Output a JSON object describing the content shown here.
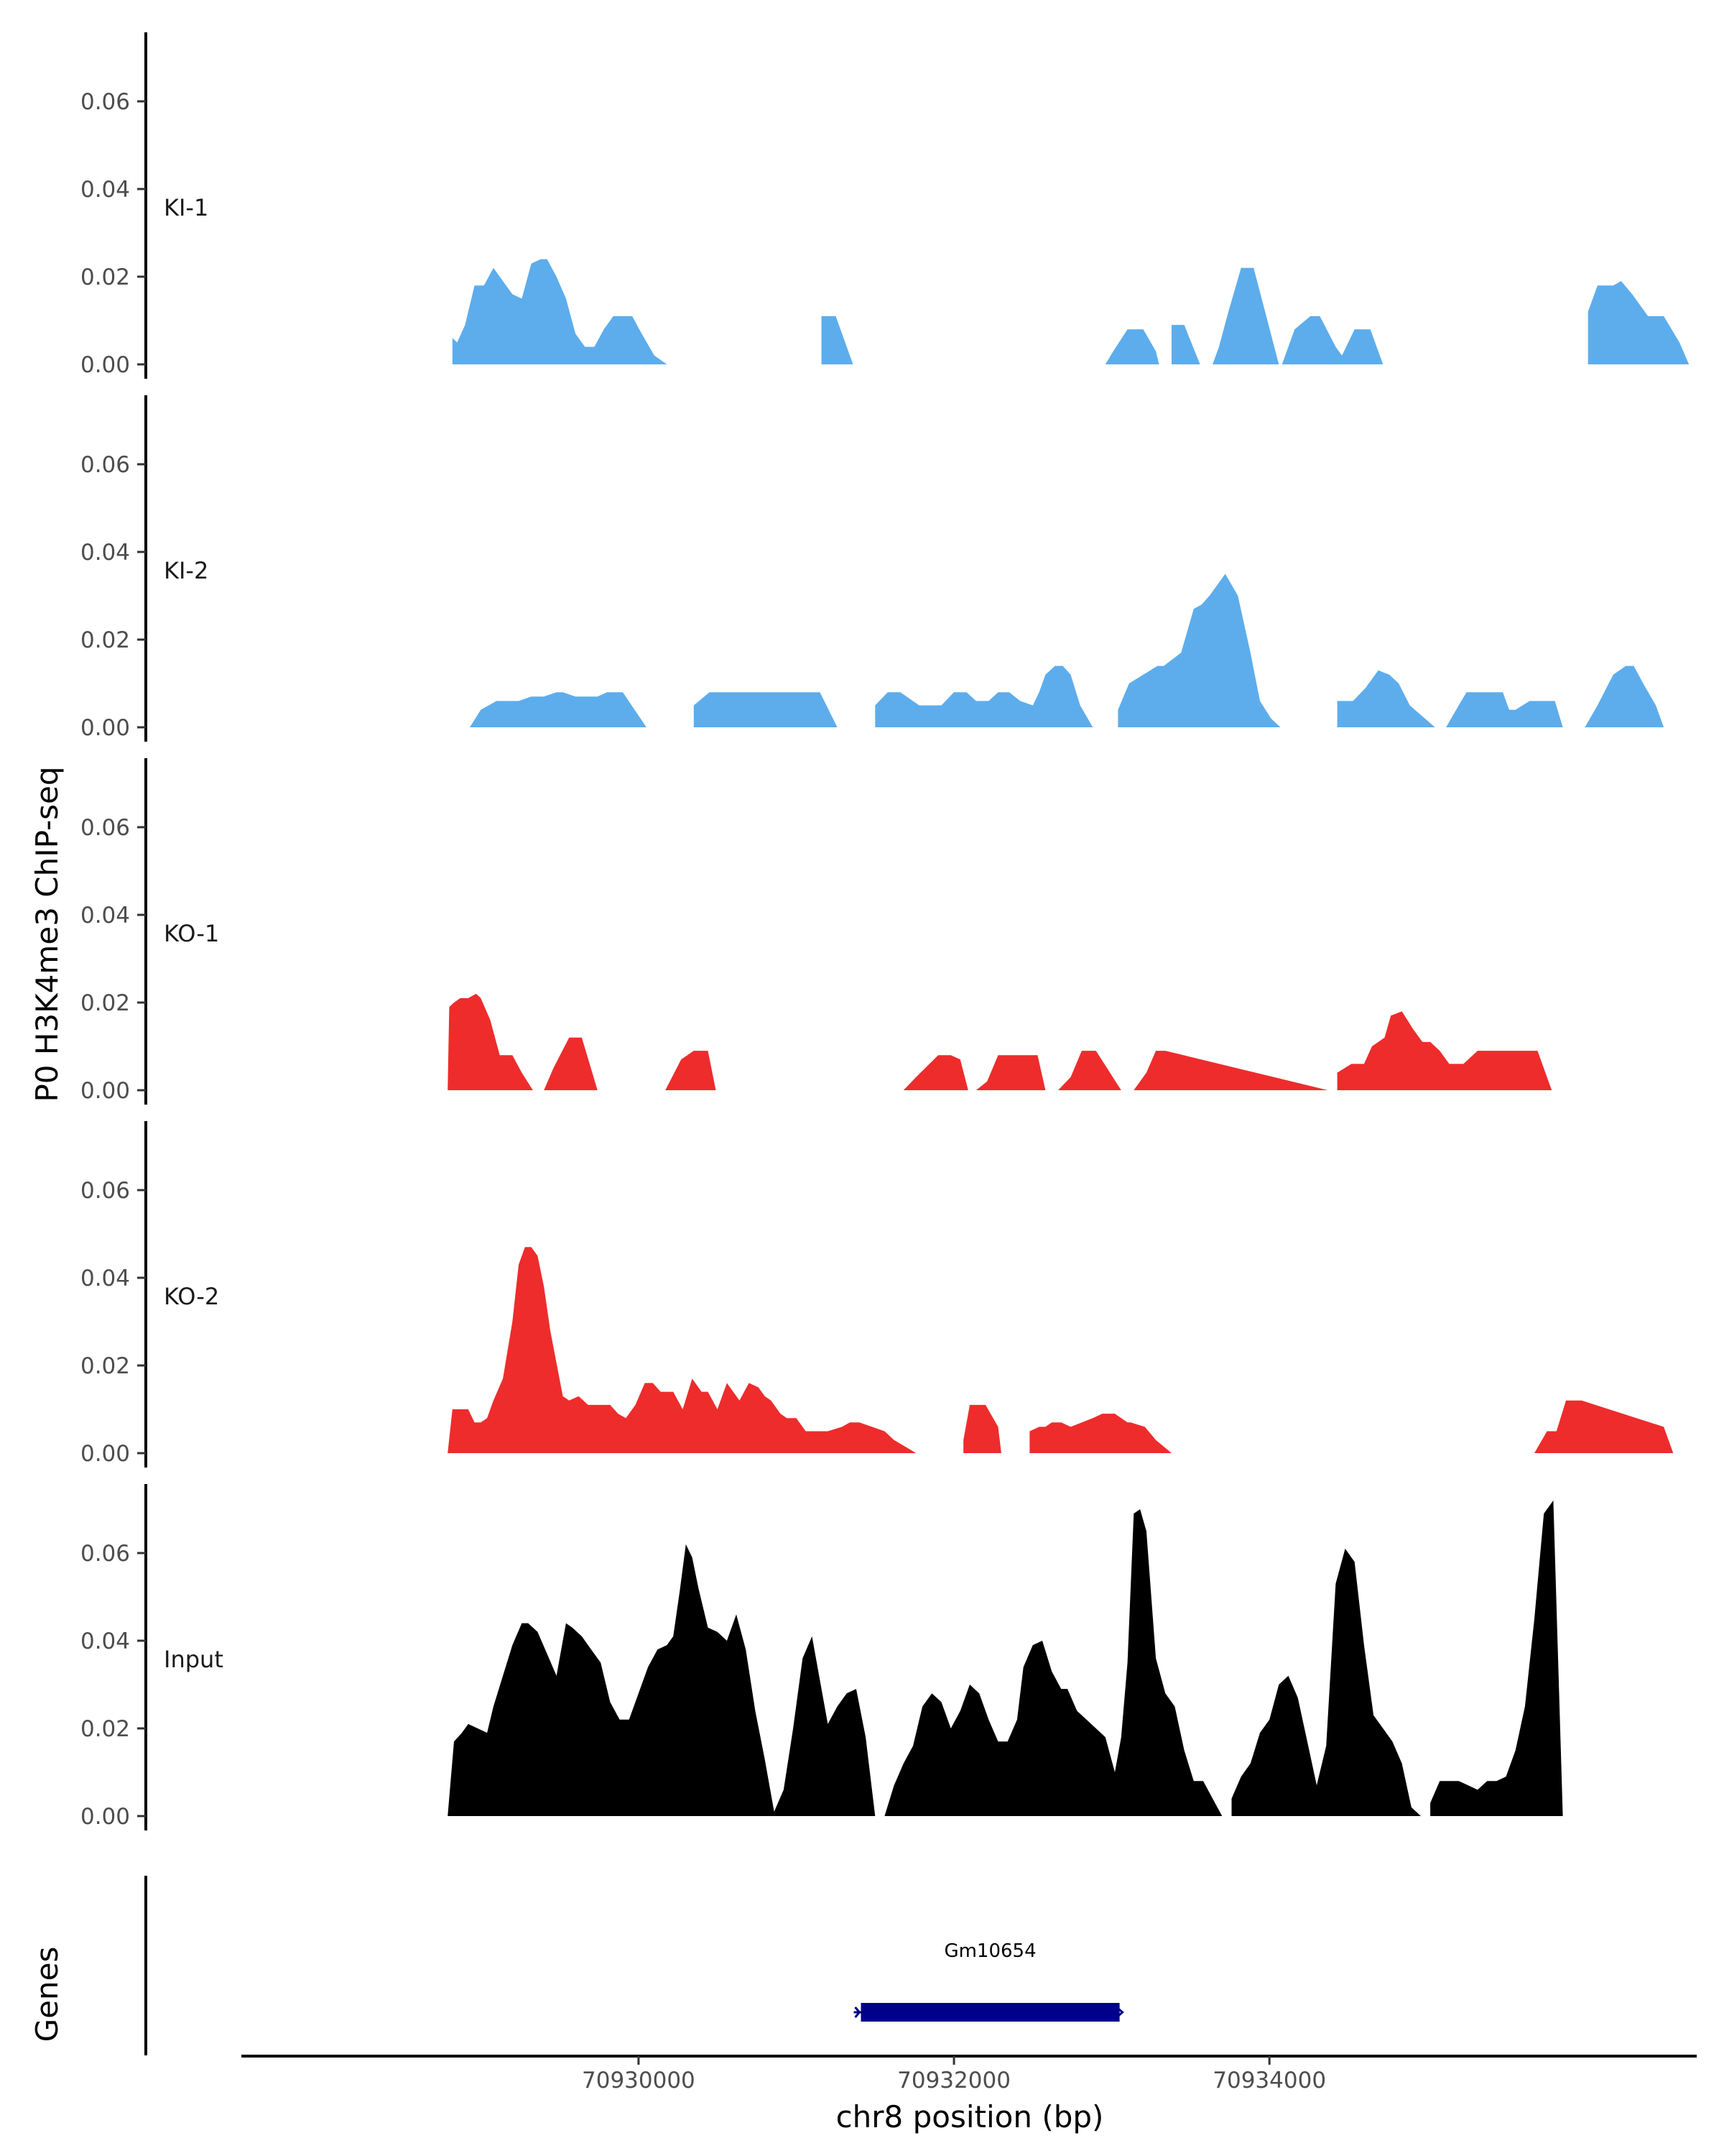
{
  "chart_data": {
    "type": "area",
    "ylabel": "P0 H3K4me3 ChIP-seq",
    "xlabel": "chr8 position (bp)",
    "xlim": [
      70927500,
      70936700
    ],
    "ylim": [
      0,
      0.075
    ],
    "y_ticks": [
      0,
      0.02,
      0.04,
      0.06
    ],
    "y_tick_labels": [
      "0.00",
      "0.02",
      "0.04",
      "0.06"
    ],
    "x_ticks": [
      70930000,
      70932000,
      70934000
    ],
    "x_tick_labels": [
      "70930000",
      "70932000",
      "70934000"
    ],
    "tracks": [
      {
        "name": "KI-1",
        "color": "#5DADEC",
        "x": [
          70928820,
          70928850,
          70928900,
          70928960,
          70929020,
          70929080,
          70929140,
          70929200,
          70929260,
          70929320,
          70929380,
          70929420,
          70929480,
          70929540,
          70929600,
          70929660,
          70929720,
          70929780,
          70929840,
          70929900,
          70929960,
          70930020,
          70930100,
          70930180,
          70930230,
          70931060,
          70931160,
          70931250,
          70931360,
          70932960,
          70933010,
          70933100,
          70933200,
          70933280,
          70933300,
          70933380,
          70933460,
          70933560,
          70933640,
          70933680,
          70933740,
          70933820,
          70933900,
          70933980,
          70934060,
          70934080,
          70934160,
          70934260,
          70934320,
          70934420,
          70934460,
          70934540,
          70934640,
          70934720,
          70934820,
          70935960,
          70936020,
          70936080,
          70936180,
          70936230,
          70936300,
          70936400,
          70936500,
          70936600,
          70936660
        ],
        "values": [
          0.006,
          0.005,
          0.009,
          0.018,
          0.018,
          0.022,
          0.019,
          0.016,
          0.015,
          0.023,
          0.024,
          0.024,
          0.02,
          0.015,
          0.007,
          0.004,
          0.004,
          0.008,
          0.011,
          0.011,
          0.011,
          0.007,
          0.002,
          0.0,
          0.0,
          0.0,
          0.011,
          0.011,
          0.0,
          0.0,
          0.003,
          0.008,
          0.008,
          0.003,
          0.0,
          0.009,
          0.009,
          0.0,
          0.0,
          0.004,
          0.012,
          0.022,
          0.022,
          0.011,
          0.0,
          0.0,
          0.008,
          0.011,
          0.011,
          0.004,
          0.002,
          0.008,
          0.008,
          0.0,
          0.0,
          0.0,
          0.012,
          0.018,
          0.018,
          0.019,
          0.016,
          0.011,
          0.011,
          0.005,
          0.0
        ]
      },
      {
        "name": "KI-2",
        "color": "#5DADEC",
        "x": [
          70928930,
          70929000,
          70929100,
          70929200,
          70929240,
          70929320,
          70929400,
          70929480,
          70929520,
          70929600,
          70929700,
          70929740,
          70929800,
          70929900,
          70930050,
          70930200,
          70930280,
          70930350,
          70930450,
          70931150,
          70931260,
          70931360,
          70931420,
          70931500,
          70931580,
          70931660,
          70931780,
          70931860,
          70931920,
          70932000,
          70932080,
          70932140,
          70932220,
          70932280,
          70932350,
          70932420,
          70932500,
          70932540,
          70932580,
          70932640,
          70932690,
          70932740,
          70932800,
          70932880,
          70932950,
          70932990,
          70933040,
          70933110,
          70933290,
          70933330,
          70933440,
          70933520,
          70933570,
          70933620,
          70933720,
          70933800,
          70933880,
          70933940,
          70934010,
          70934070,
          70934160,
          70934270,
          70934430,
          70934530,
          70934610,
          70934690,
          70934760,
          70934820,
          70934890,
          70935050,
          70935120,
          70935200,
          70935250,
          70935320,
          70935400,
          70935480,
          70935520,
          70935560,
          70935650,
          70935720,
          70935760,
          70935810,
          70935860,
          70936000,
          70936080,
          70936180,
          70936260,
          70936310,
          70936370,
          70936450,
          70936500,
          70936600,
          70936660
        ],
        "values": [
          0.0,
          0.004,
          0.006,
          0.006,
          0.006,
          0.007,
          0.007,
          0.008,
          0.008,
          0.007,
          0.007,
          0.007,
          0.008,
          0.008,
          0.0,
          0.0,
          0.0,
          0.005,
          0.008,
          0.008,
          0.0,
          0.0,
          0.0,
          0.005,
          0.008,
          0.008,
          0.005,
          0.005,
          0.005,
          0.008,
          0.008,
          0.006,
          0.006,
          0.008,
          0.008,
          0.006,
          0.005,
          0.008,
          0.012,
          0.014,
          0.014,
          0.012,
          0.005,
          0.0,
          0.0,
          0.0,
          0.004,
          0.01,
          0.014,
          0.014,
          0.017,
          0.027,
          0.028,
          0.03,
          0.035,
          0.03,
          0.017,
          0.006,
          0.002,
          0.0,
          0.0,
          0.0,
          0.006,
          0.006,
          0.009,
          0.013,
          0.012,
          0.01,
          0.005,
          0.0,
          0.0,
          0.005,
          0.008,
          0.008,
          0.008,
          0.008,
          0.004,
          0.004,
          0.006,
          0.006,
          0.006,
          0.006,
          0.0,
          0.0,
          0.005,
          0.012,
          0.014,
          0.014,
          0.01,
          0.005,
          0.0,
          0.0,
          0.0
        ]
      },
      {
        "name": "KO-1",
        "color": "#EE2C2C",
        "x": [
          70928790,
          70928800,
          70928830,
          70928870,
          70928920,
          70928970,
          70929000,
          70929060,
          70929120,
          70929170,
          70929200,
          70929260,
          70929330,
          70929400,
          70929460,
          70929560,
          70929600,
          70929640,
          70929740,
          70930170,
          70930270,
          70930350,
          70930440,
          70930490,
          70931680,
          70931760,
          70931900,
          70931980,
          70932040,
          70932090,
          70932140,
          70932210,
          70932280,
          70932530,
          70932580,
          70932660,
          70932740,
          70932810,
          70932850,
          70932900,
          70933060,
          70933140,
          70933220,
          70933280,
          70933340,
          70934370,
          70934430,
          70934520,
          70934600,
          70934650,
          70934730,
          70934770,
          70934840,
          70934910,
          70934970,
          70935020,
          70935080,
          70935140,
          70935180,
          70935230,
          70935320,
          70935420,
          70935610,
          70935700,
          70935790
        ],
        "values": [
          0.0,
          0.019,
          0.02,
          0.021,
          0.021,
          0.022,
          0.021,
          0.016,
          0.008,
          0.008,
          0.008,
          0.004,
          0.0,
          0.0,
          0.005,
          0.012,
          0.012,
          0.012,
          0.0,
          0.0,
          0.007,
          0.009,
          0.009,
          0.0,
          0.0,
          0.003,
          0.008,
          0.008,
          0.007,
          0.0,
          0.0,
          0.002,
          0.008,
          0.008,
          0.0,
          0.0,
          0.003,
          0.009,
          0.009,
          0.009,
          0.0,
          0.0,
          0.004,
          0.009,
          0.009,
          0.0,
          0.004,
          0.006,
          0.006,
          0.01,
          0.012,
          0.017,
          0.018,
          0.014,
          0.011,
          0.011,
          0.009,
          0.006,
          0.006,
          0.006,
          0.009,
          0.009,
          0.009,
          0.009,
          0.0
        ]
      },
      {
        "name": "KO-2",
        "color": "#EE2C2C",
        "x": [
          70928790,
          70928820,
          70928920,
          70928960,
          70929000,
          70929040,
          70929080,
          70929140,
          70929200,
          70929240,
          70929280,
          70929320,
          70929360,
          70929400,
          70929440,
          70929520,
          70929560,
          70929620,
          70929680,
          70929740,
          70929820,
          70929870,
          70929920,
          70929980,
          70930040,
          70930090,
          70930140,
          70930180,
          70930220,
          70930280,
          70930340,
          70930400,
          70930440,
          70930500,
          70930560,
          70930600,
          70930640,
          70930700,
          70930760,
          70930800,
          70930840,
          70930900,
          70930940,
          70931000,
          70931060,
          70931120,
          70931200,
          70931290,
          70931340,
          70931400,
          70931560,
          70931620,
          70931760,
          70931800,
          70931880,
          70932060,
          70932100,
          70932200,
          70932280,
          70932300,
          70932380,
          70932440,
          70932480,
          70932540,
          70932580,
          70932620,
          70932680,
          70932740,
          70932880,
          70932940,
          70933020,
          70933100,
          70933120,
          70933210,
          70933280,
          70933380,
          70933460,
          70933540,
          70935680,
          70935760,
          70935820,
          70935880,
          70935980,
          70936500,
          70936560,
          70936600,
          70936660
        ],
        "values": [
          0.0,
          0.01,
          0.01,
          0.007,
          0.007,
          0.008,
          0.012,
          0.017,
          0.03,
          0.043,
          0.047,
          0.047,
          0.045,
          0.038,
          0.028,
          0.013,
          0.012,
          0.013,
          0.011,
          0.011,
          0.011,
          0.009,
          0.008,
          0.011,
          0.016,
          0.016,
          0.014,
          0.014,
          0.014,
          0.01,
          0.017,
          0.014,
          0.014,
          0.01,
          0.016,
          0.014,
          0.012,
          0.016,
          0.015,
          0.013,
          0.012,
          0.009,
          0.008,
          0.008,
          0.005,
          0.005,
          0.005,
          0.006,
          0.007,
          0.007,
          0.005,
          0.003,
          0.0,
          0.0,
          0.0,
          0.003,
          0.011,
          0.011,
          0.006,
          0.0,
          0.0,
          0.0,
          0.005,
          0.006,
          0.006,
          0.007,
          0.007,
          0.006,
          0.008,
          0.009,
          0.009,
          0.007,
          0.007,
          0.006,
          0.003,
          0.0,
          0.0,
          0.0,
          0.0,
          0.005,
          0.005,
          0.012,
          0.012,
          0.006,
          0.0,
          0.0,
          0.0
        ]
      },
      {
        "name": "Input",
        "color": "#000000",
        "x": [
          70928790,
          70928830,
          70928880,
          70928920,
          70928980,
          70929040,
          70929080,
          70929140,
          70929200,
          70929260,
          70929300,
          70929360,
          70929420,
          70929480,
          70929540,
          70929580,
          70929640,
          70929700,
          70929760,
          70929820,
          70929880,
          70929940,
          70930000,
          70930060,
          70930120,
          70930180,
          70930220,
          70930260,
          70930300,
          70930340,
          70930380,
          70930440,
          70930500,
          70930560,
          70930620,
          70930680,
          70930740,
          70930800,
          70930860,
          70930920,
          70930980,
          70931040,
          70931100,
          70931160,
          70931200,
          70931260,
          70931320,
          70931380,
          70931440,
          70931500,
          70931560,
          70931620,
          70931680,
          70931740,
          70931800,
          70931860,
          70931920,
          70931980,
          70932040,
          70932100,
          70932160,
          70932220,
          70932280,
          70932340,
          70932400,
          70932440,
          70932500,
          70932560,
          70932620,
          70932680,
          70932720,
          70932780,
          70932840,
          70932900,
          70932960,
          70933020,
          70933060,
          70933100,
          70933140,
          70933180,
          70933220,
          70933280,
          70933340,
          70933400,
          70933460,
          70933520,
          70933580,
          70933640,
          70933700,
          70933760,
          70933820,
          70933880,
          70933940,
          70934000,
          70934060,
          70934120,
          70934180,
          70934240,
          70934300,
          70934360,
          70934420,
          70934480,
          70934540,
          70934600,
          70934660,
          70934720,
          70934780,
          70934840,
          70934900,
          70934960,
          70935020,
          70935080,
          70935140,
          70935200,
          70935260,
          70935320,
          70935380,
          70935440,
          70935500,
          70935560,
          70935620,
          70935680,
          70935740,
          70935800,
          70935860,
          70935920,
          70935980,
          70936040,
          70936100,
          70936160,
          70936220,
          70936280,
          70936340,
          70936400,
          70936460,
          70936500,
          70936560,
          70936600,
          70936660
        ],
        "values": [
          0.0,
          0.017,
          0.019,
          0.021,
          0.02,
          0.019,
          0.025,
          0.032,
          0.039,
          0.044,
          0.044,
          0.042,
          0.037,
          0.032,
          0.044,
          0.043,
          0.041,
          0.038,
          0.035,
          0.026,
          0.022,
          0.022,
          0.028,
          0.034,
          0.038,
          0.039,
          0.041,
          0.051,
          0.062,
          0.059,
          0.052,
          0.043,
          0.042,
          0.04,
          0.046,
          0.038,
          0.024,
          0.013,
          0.001,
          0.006,
          0.02,
          0.036,
          0.041,
          0.029,
          0.021,
          0.025,
          0.028,
          0.029,
          0.018,
          0.0,
          0.0,
          0.007,
          0.012,
          0.016,
          0.025,
          0.028,
          0.026,
          0.02,
          0.024,
          0.03,
          0.028,
          0.022,
          0.017,
          0.017,
          0.022,
          0.034,
          0.039,
          0.04,
          0.033,
          0.029,
          0.029,
          0.024,
          0.022,
          0.02,
          0.018,
          0.01,
          0.018,
          0.035,
          0.069,
          0.07,
          0.065,
          0.036,
          0.028,
          0.025,
          0.015,
          0.008,
          0.008,
          0.004,
          0.0,
          0.004,
          0.009,
          0.012,
          0.019,
          0.022,
          0.03,
          0.032,
          0.027,
          0.017,
          0.007,
          0.016,
          0.053,
          0.061,
          0.058,
          0.039,
          0.023,
          0.02,
          0.017,
          0.012,
          0.002,
          0.0,
          0.003,
          0.008,
          0.008,
          0.008,
          0.007,
          0.006,
          0.008,
          0.008,
          0.009,
          0.015,
          0.025,
          0.045,
          0.069,
          0.072,
          0.0,
          0.0,
          0.0,
          0.0,
          0.0,
          0.0,
          0.0,
          0.0,
          0.0,
          0.0,
          0.0,
          0.0,
          0.0,
          0.0,
          0.0
        ]
      }
    ],
    "genes": [
      {
        "name": "Gm10654",
        "start": 70931410,
        "end": 70933050,
        "color": "#00008B"
      }
    ],
    "genes_label": "Genes"
  }
}
